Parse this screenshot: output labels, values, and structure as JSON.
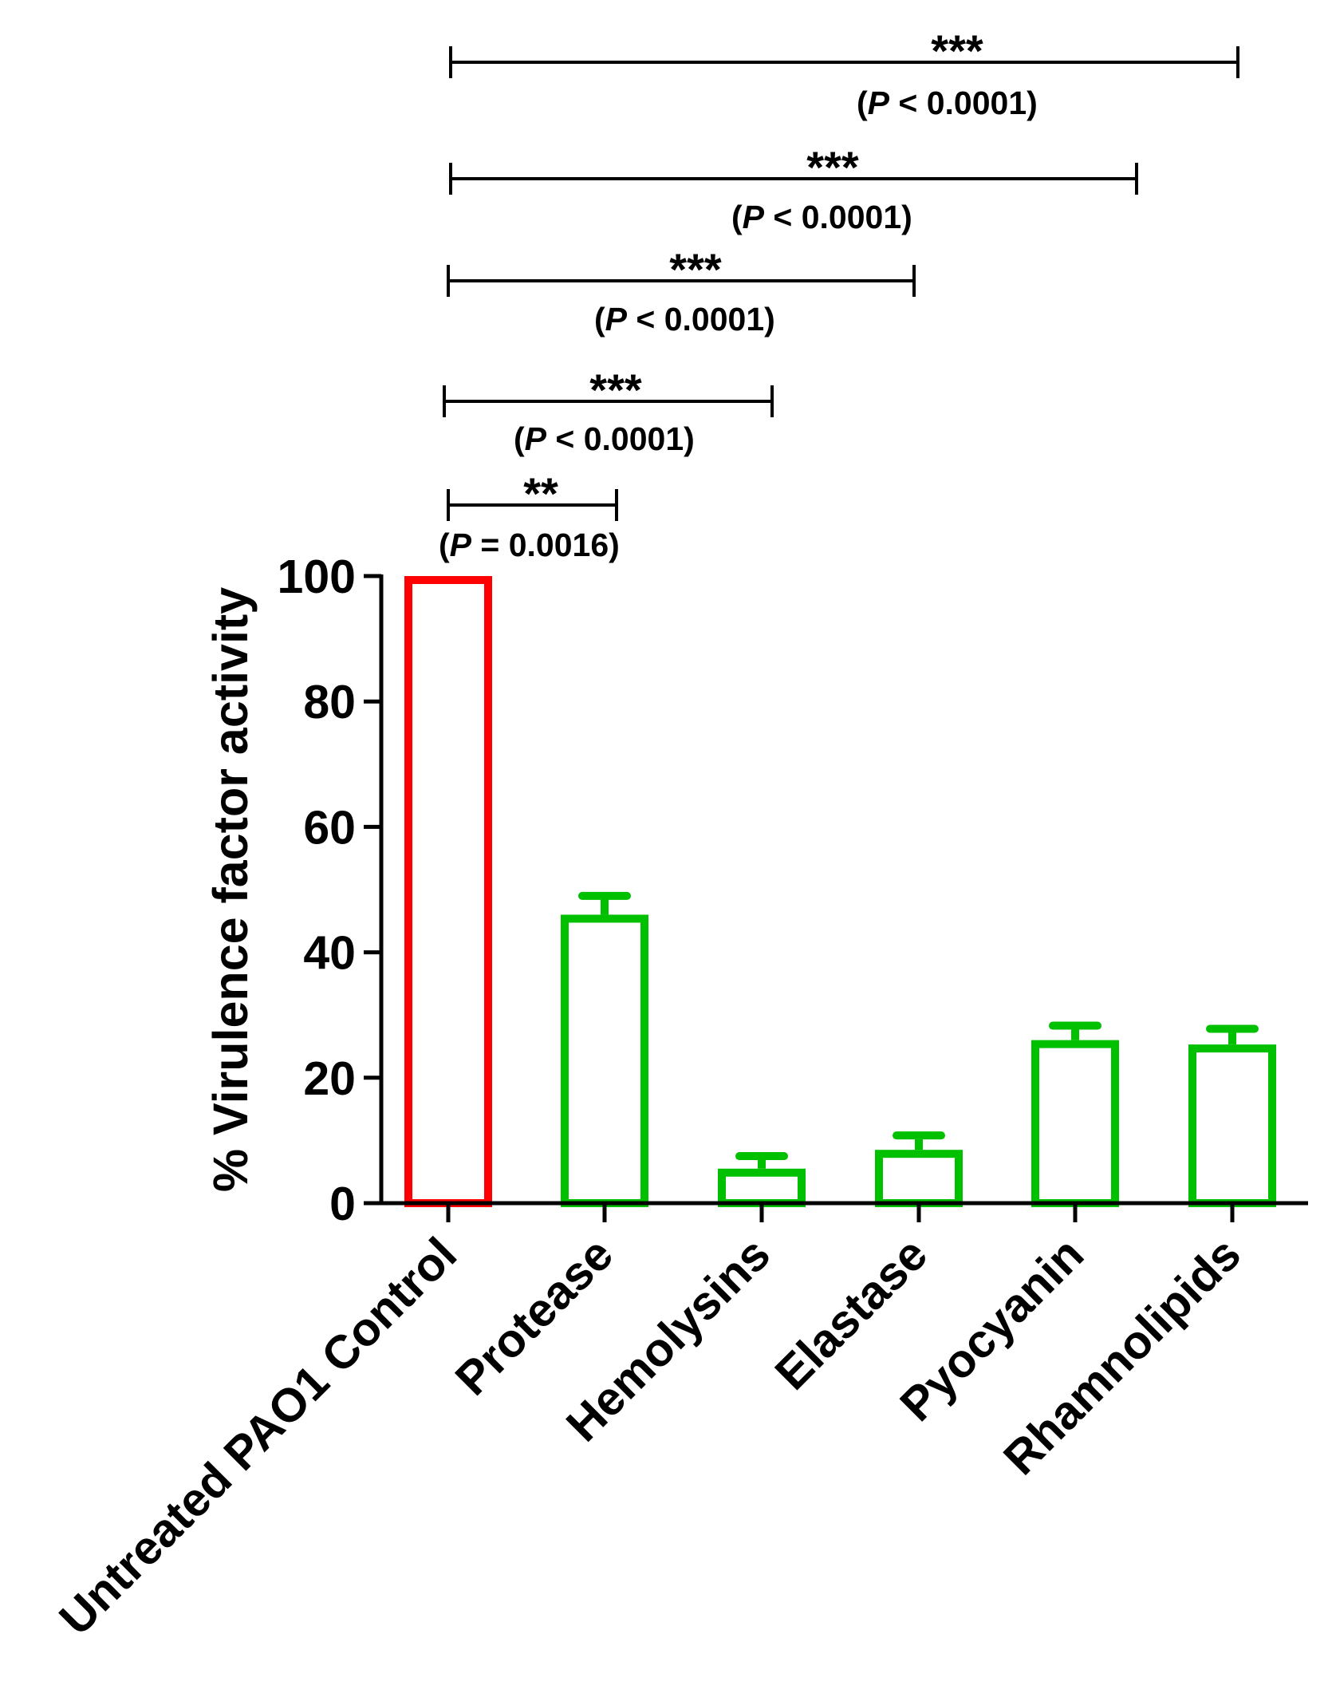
{
  "chart_data": {
    "type": "bar",
    "title": "",
    "xlabel": "",
    "ylabel": "% Virulence factor activity",
    "ylim": [
      0,
      100
    ],
    "yticks": [
      0,
      20,
      40,
      60,
      80,
      100
    ],
    "grid": false,
    "categories": [
      "Untreated PAO1 Control",
      "Protease",
      "Hemolysins",
      "Elastase",
      "Pyocyanin",
      "Rhamnolipids"
    ],
    "values": [
      100,
      46,
      5.5,
      8.5,
      26,
      25.3
    ],
    "errors": [
      0,
      3,
      2,
      2.3,
      2.3,
      2.5
    ],
    "colors": [
      "#ff0000",
      "#00c000",
      "#00c000",
      "#00c000",
      "#00c000",
      "#00c000"
    ],
    "annotations": [
      {
        "from": "Untreated PAO1 Control",
        "to": "Protease",
        "stars": "**",
        "p_prefix": "(",
        "p_italic": "P",
        "p_rest": " = 0.0016)"
      },
      {
        "from": "Untreated PAO1 Control",
        "to": "Hemolysins",
        "stars": "***",
        "p_prefix": "(",
        "p_italic": "P",
        "p_rest": " < 0.0001)"
      },
      {
        "from": "Untreated PAO1 Control",
        "to": "Elastase",
        "stars": "***",
        "p_prefix": "(",
        "p_italic": "P",
        "p_rest": " < 0.0001)"
      },
      {
        "from": "Untreated PAO1 Control",
        "to": "Pyocyanin",
        "stars": "***",
        "p_prefix": "(",
        "p_italic": "P",
        "p_rest": " < 0.0001)"
      },
      {
        "from": "Untreated PAO1 Control",
        "to": "Rhamnolipids",
        "stars": "***",
        "p_prefix": "(",
        "p_italic": "P",
        "p_rest": " < 0.0001)"
      }
    ]
  }
}
